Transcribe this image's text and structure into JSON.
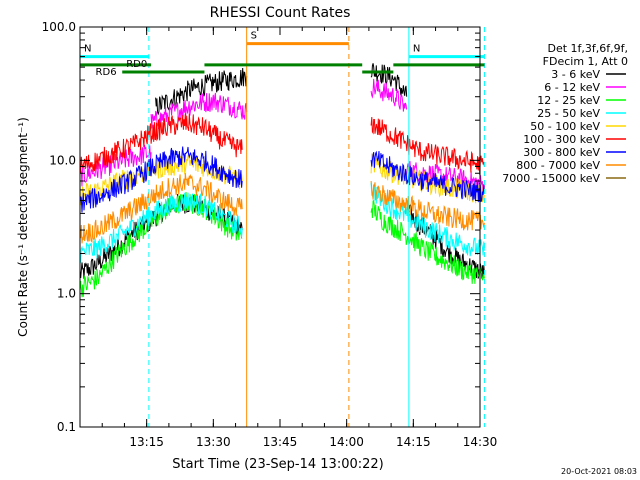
{
  "chart_data": {
    "type": "line",
    "title": "RHESSI Count Rates",
    "xlabel": "Start Time (23-Sep-14 13:00:22)",
    "ylabel": "Count Rate (s⁻¹ detector segment⁻¹)",
    "ylim": [
      0.1,
      100.0
    ],
    "yscale": "log",
    "xlim_minutes": [
      0,
      90
    ],
    "x_ticks": [
      {
        "label": "13:15",
        "minutes": 15
      },
      {
        "label": "13:30",
        "minutes": 30
      },
      {
        "label": "13:45",
        "minutes": 45
      },
      {
        "label": "14:00",
        "minutes": 60
      },
      {
        "label": "14:15",
        "minutes": 75
      },
      {
        "label": "14:30",
        "minutes": 90
      }
    ],
    "y_ticks": [
      {
        "label": "0.1",
        "value": 0.1
      },
      {
        "label": "1.0",
        "value": 1.0
      },
      {
        "label": "10.0",
        "value": 10.0
      },
      {
        "label": "100.0",
        "value": 100.0
      }
    ],
    "grid": false,
    "legend": {
      "placement": "right",
      "header": [
        "Det 1f,3f,6f,9f,",
        "FDecim 1, Att 0"
      ]
    },
    "series": [
      {
        "name": "3 - 6 keV",
        "color": "#000000",
        "segments": [
          {
            "x": [
              0,
              3,
              6,
              9,
              12,
              15,
              17,
              20,
              23,
              26,
              29,
              32,
              35,
              36.5
            ],
            "y": [
              1.4,
              1.6,
              1.9,
              2.3,
              2.9,
              3.3,
              3.8,
              4.5,
              4.8,
              4.7,
              4.2,
              3.7,
              3.3,
              3.0
            ]
          },
          {
            "x": [
              17,
              20,
              25,
              30,
              35,
              37.5
            ],
            "y": [
              25,
              28,
              34,
              38,
              41,
              43
            ]
          },
          {
            "x": [
              65.5,
              68,
              71,
              73.5
            ],
            "y": [
              48,
              45,
              40,
              30
            ]
          },
          {
            "x": [
              73.5,
              76,
              79,
              82,
              85,
              88,
              91
            ],
            "y": [
              4.2,
              3.4,
              2.8,
              2.2,
              1.8,
              1.6,
              1.4
            ]
          }
        ]
      },
      {
        "name": "6 - 12 keV",
        "color": "#ff00ff",
        "segments": [
          {
            "x": [
              0,
              4,
              8,
              12,
              16
            ],
            "y": [
              7.5,
              8.5,
              9.5,
              10.5,
              11.5
            ]
          },
          {
            "x": [
              16,
              20,
              25,
              30,
              35,
              37.5
            ],
            "y": [
              19,
              22,
              26,
              28,
              25,
              23
            ]
          },
          {
            "x": [
              65.5,
              68,
              71,
              73.5
            ],
            "y": [
              36,
              33,
              30,
              24
            ]
          },
          {
            "x": [
              73.5,
              78,
              83,
              88,
              91
            ],
            "y": [
              8.5,
              8,
              7.5,
              7,
              6.5
            ]
          }
        ]
      },
      {
        "name": "12 - 25 keV",
        "color": "#00ff00",
        "segments": [
          {
            "x": [
              0,
              4,
              8,
              12,
              16,
              20,
              24,
              28,
              32,
              36.5
            ],
            "y": [
              1.1,
              1.3,
              1.9,
              2.6,
              3.4,
              4.4,
              4.9,
              4.4,
              3.4,
              2.6
            ]
          },
          {
            "x": [
              65.5,
              68,
              71,
              74,
              77,
              80,
              83,
              86,
              89,
              91
            ],
            "y": [
              4.5,
              3.6,
              3.1,
              2.7,
              2.2,
              1.9,
              1.7,
              1.5,
              1.4,
              1.3
            ]
          }
        ]
      },
      {
        "name": "25 - 50 keV",
        "color": "#00ffff",
        "segments": [
          {
            "x": [
              0,
              4,
              8,
              12,
              16,
              20,
              24,
              28,
              32,
              36.5
            ],
            "y": [
              2.0,
              2.2,
              2.6,
              3.2,
              4.0,
              4.6,
              5.0,
              4.6,
              3.8,
              3.1
            ]
          },
          {
            "x": [
              65.5,
              68,
              71,
              74,
              77,
              80,
              83,
              86,
              89,
              91
            ],
            "y": [
              6.2,
              5.0,
              4.3,
              3.7,
              3.2,
              2.9,
              2.6,
              2.4,
              2.2,
              2.1
            ]
          }
        ]
      },
      {
        "name": "50 - 100 keV",
        "color": "#ffd700",
        "segments": [
          {
            "x": [
              0,
              4,
              8,
              12,
              16,
              20,
              24,
              28,
              32,
              36.5
            ],
            "y": [
              5.5,
              6.0,
              6.8,
              7.6,
              8.5,
              9.0,
              9.5,
              9.0,
              8.0,
              7.0
            ]
          },
          {
            "x": [
              65.5,
              68,
              71,
              74,
              77,
              80,
              83,
              86,
              89,
              91
            ],
            "y": [
              9.5,
              8.6,
              8.0,
              7.4,
              7.0,
              6.6,
              6.2,
              6.0,
              5.7,
              5.5
            ]
          }
        ]
      },
      {
        "name": "100 - 300 keV",
        "color": "#ff0000",
        "segments": [
          {
            "x": [
              0,
              4,
              8,
              12,
              16,
              20,
              24,
              28,
              32,
              36.5
            ],
            "y": [
              9.0,
              10.0,
              11.5,
              13.0,
              16.0,
              18.0,
              19.0,
              17.5,
              14.0,
              12.0
            ]
          },
          {
            "x": [
              65.5,
              68,
              71,
              74,
              77,
              80,
              83,
              86,
              89,
              91
            ],
            "y": [
              19.0,
              17.0,
              15.0,
              13.0,
              11.5,
              11.0,
              10.5,
              10.0,
              9.5,
              9.0
            ]
          }
        ]
      },
      {
        "name": "300 - 800 keV",
        "color": "#0000ff",
        "segments": [
          {
            "x": [
              0,
              4,
              8,
              12,
              16,
              20,
              24,
              28,
              32,
              36.5
            ],
            "y": [
              4.8,
              5.3,
              6.2,
              7.2,
              8.8,
              10.2,
              10.8,
              10.0,
              8.3,
              7.0
            ]
          },
          {
            "x": [
              65.5,
              68,
              71,
              74,
              77,
              80,
              83,
              86,
              89,
              91
            ],
            "y": [
              10.5,
              9.5,
              8.5,
              7.7,
              7.1,
              6.7,
              6.4,
              6.1,
              5.9,
              5.7
            ]
          }
        ]
      },
      {
        "name": "800 - 7000 keV",
        "color": "#ff8c00",
        "segments": [
          {
            "x": [
              0,
              4,
              8,
              12,
              16,
              20,
              24,
              28,
              32,
              36.5
            ],
            "y": [
              2.8,
              3.0,
              3.6,
              4.3,
              5.3,
              6.3,
              6.8,
              6.2,
              5.0,
              4.3
            ]
          },
          {
            "x": [
              65.5,
              68,
              71,
              74,
              77,
              80,
              83,
              86,
              89,
              91
            ],
            "y": [
              6.2,
              5.6,
              5.0,
              4.6,
              4.2,
              3.9,
              3.7,
              3.6,
              3.5,
              3.4
            ]
          }
        ]
      },
      {
        "name": "7000 - 15000 keV",
        "color": "#8b6914",
        "segments": []
      }
    ],
    "annotations": {
      "flags": [
        {
          "label": "N",
          "color": "#00ffff",
          "x0": 0,
          "x1": 15.5,
          "level": 60
        },
        {
          "label": "N",
          "color": "#00ffff",
          "x0": 74,
          "x1": 91,
          "level": 60
        },
        {
          "label": "S",
          "color": "#ff8c00",
          "x0": 37.5,
          "x1": 60.5,
          "level": 75
        },
        {
          "label": "",
          "color": "#008000",
          "x0": 0,
          "x1": 16,
          "level": 52
        },
        {
          "label": "RD0",
          "color": "#008000",
          "x0": 9.5,
          "x1": 28,
          "level": 46
        },
        {
          "label": "",
          "color": "#008000",
          "x0": 28,
          "x1": 63.5,
          "level": 52
        },
        {
          "label": "",
          "color": "#008000",
          "x0": 63.5,
          "x1": 70.5,
          "level": 46
        },
        {
          "label": "",
          "color": "#008000",
          "x0": 70.5,
          "x1": 91,
          "level": 52
        },
        {
          "label": "RD6",
          "color": "#008000",
          "x0": 3.5,
          "x1": 3.5,
          "level": 40
        }
      ],
      "vlines": [
        {
          "x": 0,
          "color": "#00ffff",
          "style": "solid"
        },
        {
          "x": 15.5,
          "color": "#00ffff",
          "style": "dashed"
        },
        {
          "x": 37.5,
          "color": "#ff8c00",
          "style": "solid"
        },
        {
          "x": 60.5,
          "color": "#ff8c00",
          "style": "dashed"
        },
        {
          "x": 74,
          "color": "#00ffff",
          "style": "solid"
        },
        {
          "x": 91,
          "color": "#00ffff",
          "style": "dashed"
        }
      ]
    }
  },
  "footer": {
    "timestamp": "20-Oct-2021 08:03"
  }
}
